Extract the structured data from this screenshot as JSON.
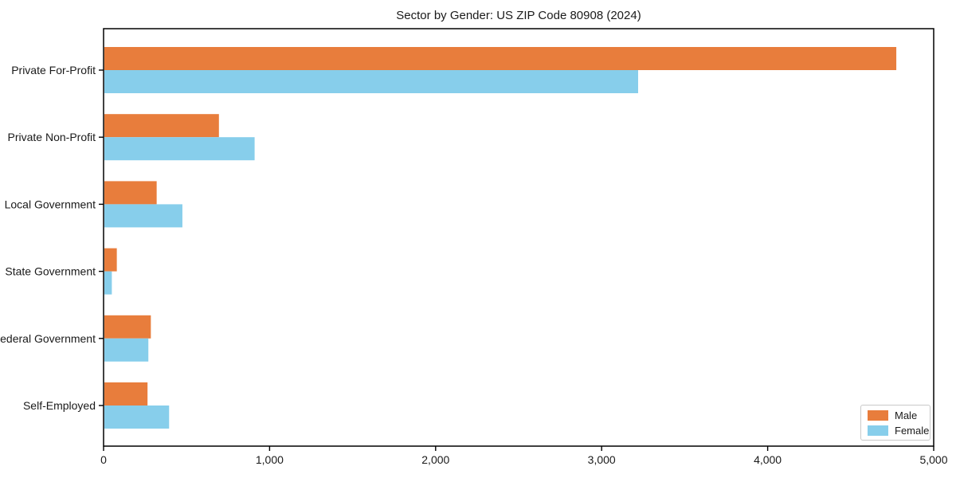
{
  "title": "Sector by Gender: US ZIP Code 80908 (2024)",
  "chart_data": {
    "type": "bar",
    "orientation": "horizontal",
    "title": "Sector by Gender: US ZIP Code 80908 (2024)",
    "xlabel": "",
    "ylabel": "",
    "categories": [
      "Private For-Profit",
      "Private Non-Profit",
      "Local Government",
      "State Government",
      "Federal Government",
      "Self-Employed"
    ],
    "series": [
      {
        "name": "Male",
        "color": "#e87d3c",
        "values": [
          4770,
          690,
          315,
          75,
          280,
          260
        ]
      },
      {
        "name": "Female",
        "color": "#87ceeb",
        "values": [
          3215,
          905,
          470,
          45,
          265,
          390
        ]
      }
    ],
    "xlim": [
      0,
      5000
    ],
    "xticks": [
      0,
      1000,
      2000,
      3000,
      4000,
      5000
    ],
    "xtick_labels": [
      "0",
      "1,000",
      "2,000",
      "3,000",
      "4,000",
      "5,000"
    ],
    "grid": false,
    "legend": {
      "position": "lower right",
      "entries": [
        "Male",
        "Female"
      ]
    }
  },
  "colors": {
    "male": "#e87d3c",
    "female": "#87ceeb",
    "axis": "#000000",
    "text": "#1a1a1a",
    "legend_border": "#c9c9c9"
  }
}
